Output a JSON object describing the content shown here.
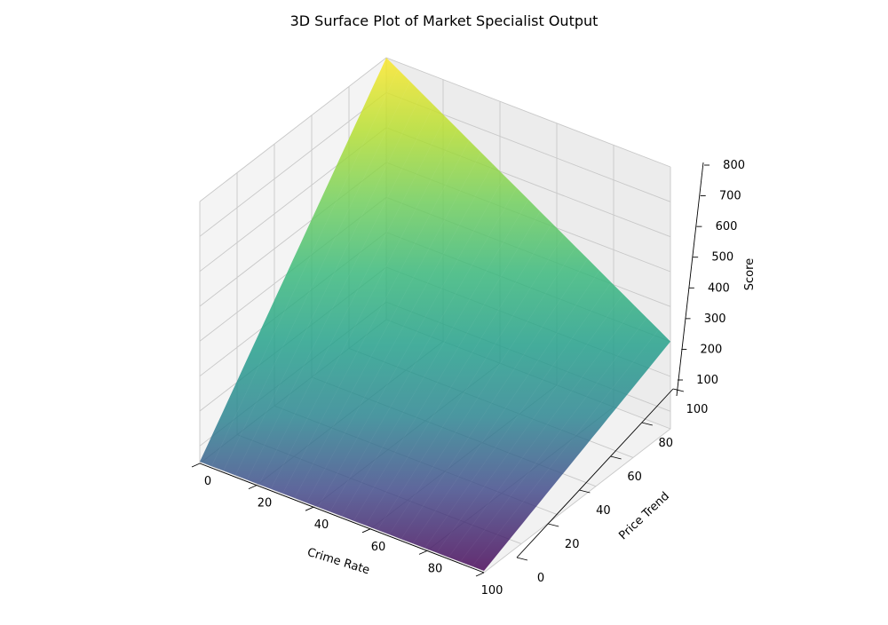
{
  "chart_data": {
    "type": "surface3d",
    "title": "3D Surface Plot of Market Specialist Output",
    "xlabel": "Crime Rate",
    "ylabel": "Price Trend",
    "zlabel": "Score",
    "xlim": [
      0,
      100
    ],
    "ylim": [
      0,
      100
    ],
    "zlim": [
      50,
      800
    ],
    "xticks": [
      0,
      20,
      40,
      60,
      80,
      100
    ],
    "yticks": [
      0,
      20,
      40,
      60,
      80,
      100
    ],
    "zticks": [
      100,
      200,
      300,
      400,
      500,
      600,
      700,
      800
    ],
    "grid": true,
    "colormap": "viridis",
    "surface_corners": [
      {
        "x": 0,
        "y": 0,
        "z": 55
      },
      {
        "x": 100,
        "y": 0,
        "z": 55
      },
      {
        "x": 100,
        "y": 100,
        "z": 300
      },
      {
        "x": 0,
        "y": 100,
        "z": 800
      }
    ]
  }
}
